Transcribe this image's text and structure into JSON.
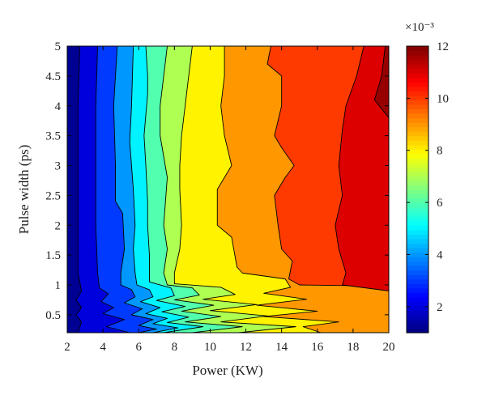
{
  "chart_data": {
    "type": "contour",
    "xlabel": "Power (KW)",
    "ylabel": "Pulse width (ps)",
    "xlim": [
      2,
      20
    ],
    "ylim": [
      0.2,
      5
    ],
    "x_ticks": [
      "2",
      "4",
      "6",
      "8",
      "10",
      "12",
      "14",
      "16",
      "18",
      "20"
    ],
    "y_ticks": [
      "0.5",
      "1",
      "1.5",
      "2",
      "2.5",
      "3",
      "3.5",
      "4",
      "4.5",
      "5"
    ],
    "colorbar": {
      "min": 1,
      "max": 12,
      "multiplier_label": "×10⁻³",
      "ticks": [
        "2",
        "4",
        "6",
        "8",
        "10",
        "12"
      ],
      "colormap": "jet"
    },
    "contour_levels": [
      1.5,
      2.5,
      3.5,
      4.5,
      5.5,
      6.5,
      7.5,
      8.5,
      9.5,
      10.5,
      11.5
    ],
    "contour_boundaries": [
      {
        "level": 1.5,
        "points": [
          [
            2.7,
            5
          ],
          [
            2.6,
            4
          ],
          [
            2.6,
            3
          ],
          [
            2.6,
            2
          ],
          [
            2.6,
            1.2
          ],
          [
            2.8,
            0.9
          ],
          [
            2.5,
            0.75
          ],
          [
            2.8,
            0.62
          ],
          [
            2.5,
            0.5
          ],
          [
            2.8,
            0.38
          ],
          [
            2.6,
            0.2
          ]
        ]
      },
      {
        "level": 2.5,
        "points": [
          [
            3.7,
            5
          ],
          [
            3.6,
            4
          ],
          [
            3.6,
            3
          ],
          [
            3.6,
            2
          ],
          [
            3.7,
            1.2
          ],
          [
            3.8,
            0.95
          ],
          [
            4.3,
            0.85
          ],
          [
            3.9,
            0.72
          ],
          [
            4.6,
            0.62
          ],
          [
            4.0,
            0.52
          ],
          [
            5.2,
            0.42
          ],
          [
            4.2,
            0.3
          ],
          [
            5.5,
            0.2
          ]
        ]
      },
      {
        "level": 3.5,
        "points": [
          [
            4.8,
            5
          ],
          [
            4.6,
            4
          ],
          [
            4.7,
            3
          ],
          [
            4.7,
            2.4
          ],
          [
            5.1,
            2.2
          ],
          [
            5.2,
            1.6
          ],
          [
            5.0,
            1.2
          ],
          [
            5.0,
            1.0
          ],
          [
            5.6,
            0.92
          ],
          [
            5.8,
            0.8
          ],
          [
            5.2,
            0.7
          ],
          [
            6.2,
            0.6
          ],
          [
            5.6,
            0.5
          ],
          [
            6.8,
            0.42
          ],
          [
            6.0,
            0.32
          ],
          [
            7.0,
            0.26
          ],
          [
            6.0,
            0.2
          ]
        ]
      },
      {
        "level": 4.5,
        "points": [
          [
            5.7,
            5
          ],
          [
            5.6,
            4
          ],
          [
            5.5,
            3.4
          ],
          [
            5.7,
            2.6
          ],
          [
            5.8,
            2.0
          ],
          [
            5.7,
            1.6
          ],
          [
            5.8,
            1.2
          ],
          [
            5.9,
            1.0
          ],
          [
            6.6,
            0.92
          ],
          [
            6.8,
            0.8
          ],
          [
            6.1,
            0.72
          ],
          [
            7.2,
            0.62
          ],
          [
            6.4,
            0.52
          ],
          [
            7.6,
            0.44
          ],
          [
            6.8,
            0.35
          ],
          [
            8.2,
            0.28
          ],
          [
            6.8,
            0.2
          ]
        ]
      },
      {
        "level": 5.5,
        "points": [
          [
            6.4,
            5
          ],
          [
            6.5,
            4.5
          ],
          [
            6.5,
            4.2
          ],
          [
            6.3,
            3.5
          ],
          [
            6.4,
            3
          ],
          [
            6.5,
            2.4
          ],
          [
            6.5,
            2.0
          ],
          [
            6.6,
            1.5
          ],
          [
            6.6,
            1.05
          ],
          [
            7.8,
            0.95
          ],
          [
            8.0,
            0.82
          ],
          [
            7.0,
            0.74
          ],
          [
            8.6,
            0.64
          ],
          [
            7.3,
            0.55
          ],
          [
            8.8,
            0.46
          ],
          [
            7.6,
            0.37
          ],
          [
            9.6,
            0.3
          ],
          [
            7.4,
            0.2
          ]
        ]
      },
      {
        "level": 6.5,
        "points": [
          [
            7.6,
            5
          ],
          [
            7.4,
            4.5
          ],
          [
            7.2,
            4
          ],
          [
            7.2,
            3.5
          ],
          [
            7.6,
            2.8
          ],
          [
            7.4,
            2.0
          ],
          [
            7.6,
            1.6
          ],
          [
            7.4,
            1.2
          ],
          [
            7.6,
            1.0
          ],
          [
            9.0,
            0.95
          ],
          [
            9.4,
            0.83
          ],
          [
            8.0,
            0.75
          ],
          [
            10.2,
            0.66
          ],
          [
            8.4,
            0.56
          ],
          [
            10.6,
            0.47
          ],
          [
            8.6,
            0.38
          ],
          [
            11.8,
            0.3
          ],
          [
            9.0,
            0.2
          ]
        ]
      },
      {
        "level": 7.5,
        "points": [
          [
            9.0,
            5
          ],
          [
            8.8,
            4.5
          ],
          [
            8.6,
            4
          ],
          [
            8.4,
            3.5
          ],
          [
            8.3,
            3
          ],
          [
            8.3,
            2.6
          ],
          [
            8.4,
            2.0
          ],
          [
            8.3,
            1.6
          ],
          [
            8.0,
            1.2
          ],
          [
            8.0,
            1.02
          ],
          [
            10.6,
            0.96
          ],
          [
            11.4,
            0.84
          ],
          [
            9.6,
            0.76
          ],
          [
            12.6,
            0.67
          ],
          [
            10.0,
            0.57
          ],
          [
            13.2,
            0.48
          ],
          [
            10.6,
            0.38
          ],
          [
            14.8,
            0.3
          ],
          [
            11.6,
            0.2
          ]
        ]
      },
      {
        "level": 8.5,
        "points": [
          [
            10.8,
            5
          ],
          [
            10.8,
            4.5
          ],
          [
            10.6,
            4.0
          ],
          [
            10.8,
            3.5
          ],
          [
            11.2,
            3.0
          ],
          [
            10.4,
            2.6
          ],
          [
            10.4,
            2.0
          ],
          [
            11.2,
            1.8
          ],
          [
            11.5,
            1.3
          ],
          [
            11.8,
            1.2
          ],
          [
            14.2,
            1.1
          ],
          [
            14.5,
            0.96
          ],
          [
            13.0,
            0.86
          ],
          [
            15.4,
            0.76
          ],
          [
            12.6,
            0.66
          ],
          [
            16.0,
            0.56
          ],
          [
            13.0,
            0.47
          ],
          [
            17.2,
            0.38
          ],
          [
            15.2,
            0.3
          ],
          [
            16.2,
            0.2
          ]
        ]
      },
      {
        "level": 9.5,
        "points": [
          [
            13.4,
            5
          ],
          [
            13.2,
            4.7
          ],
          [
            14.0,
            4.5
          ],
          [
            14.0,
            4.0
          ],
          [
            13.6,
            3.5
          ],
          [
            14.0,
            3.3
          ],
          [
            14.7,
            3.0
          ],
          [
            14.2,
            2.8
          ],
          [
            13.6,
            2.5
          ],
          [
            13.8,
            2.0
          ],
          [
            14.0,
            1.6
          ],
          [
            14.6,
            1.4
          ],
          [
            14.4,
            1.1
          ],
          [
            15.0,
            1.0
          ],
          [
            20.0,
            0.98
          ]
        ]
      },
      {
        "level": 10.5,
        "points": [
          [
            18.6,
            5
          ],
          [
            18.2,
            4.5
          ],
          [
            17.6,
            4.0
          ],
          [
            17.4,
            3.6
          ],
          [
            17.2,
            3.0
          ],
          [
            17.4,
            2.5
          ],
          [
            17.0,
            2.0
          ],
          [
            17.2,
            1.6
          ],
          [
            17.6,
            1.2
          ],
          [
            17.4,
            1.0
          ],
          [
            20.0,
            0.9
          ]
        ]
      },
      {
        "level": 11.5,
        "points": [
          [
            19.8,
            5
          ],
          [
            19.6,
            4.5
          ],
          [
            19.2,
            4.1
          ],
          [
            20.0,
            3.8
          ]
        ]
      }
    ]
  }
}
